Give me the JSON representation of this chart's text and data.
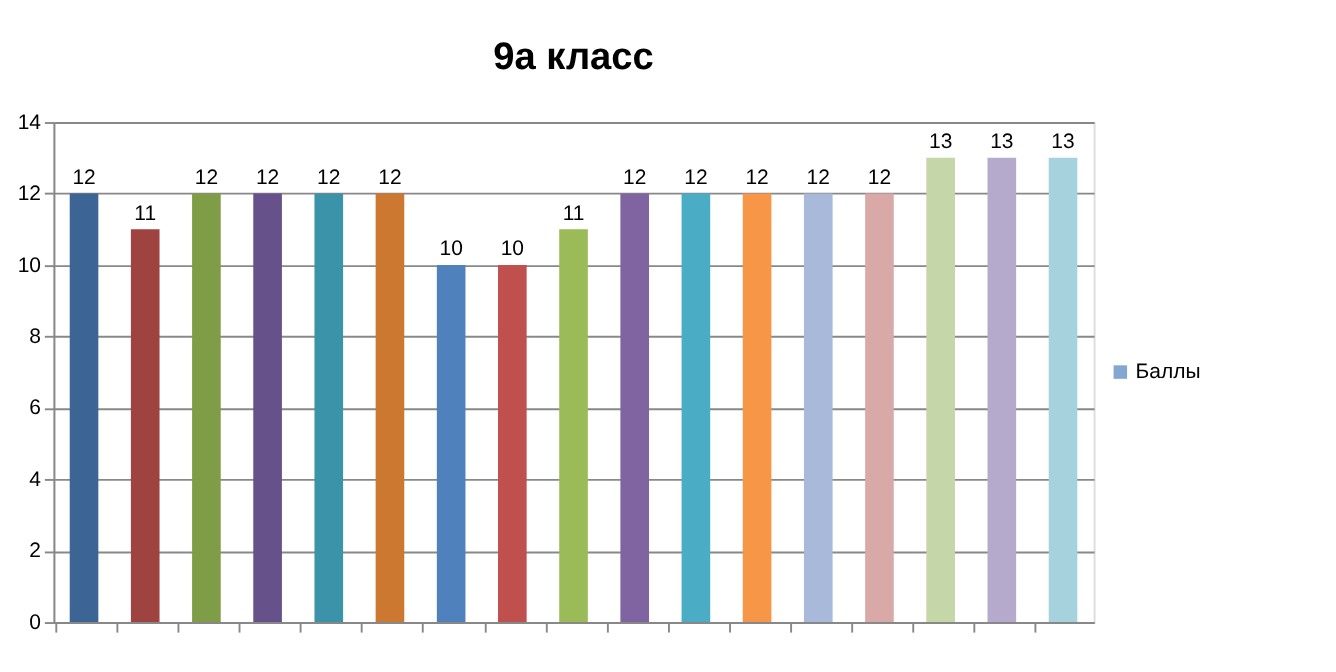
{
  "chart_data": {
    "type": "bar",
    "title": "9а класс",
    "categories": [
      null,
      null,
      null,
      null,
      null,
      null,
      null,
      null,
      null,
      null,
      null,
      null,
      null,
      null,
      null,
      null,
      null
    ],
    "series": [
      {
        "name": "Баллы",
        "color": "#4f81bd",
        "values": [
          12,
          11,
          12,
          12,
          12,
          12,
          10,
          10,
          11,
          12,
          12,
          12,
          12,
          12,
          13,
          13,
          13
        ],
        "colors": [
          "#3c6596",
          "#9e4340",
          "#7f9c47",
          "#66518a",
          "#3a93a8",
          "#cc7830",
          "#4f81bd",
          "#c0504d",
          "#9bbb59",
          "#8064a2",
          "#4bacc6",
          "#f79646",
          "#a9b9da",
          "#d9a9a8",
          "#c5d6a8",
          "#b5aacb",
          "#a6d2dd"
        ]
      }
    ],
    "ylim": [
      0,
      14
    ],
    "yticks": [
      0,
      2,
      4,
      6,
      8,
      10,
      12,
      14
    ],
    "grid": "y",
    "data_labels": true,
    "legend": "right",
    "tick_labels": "y"
  }
}
